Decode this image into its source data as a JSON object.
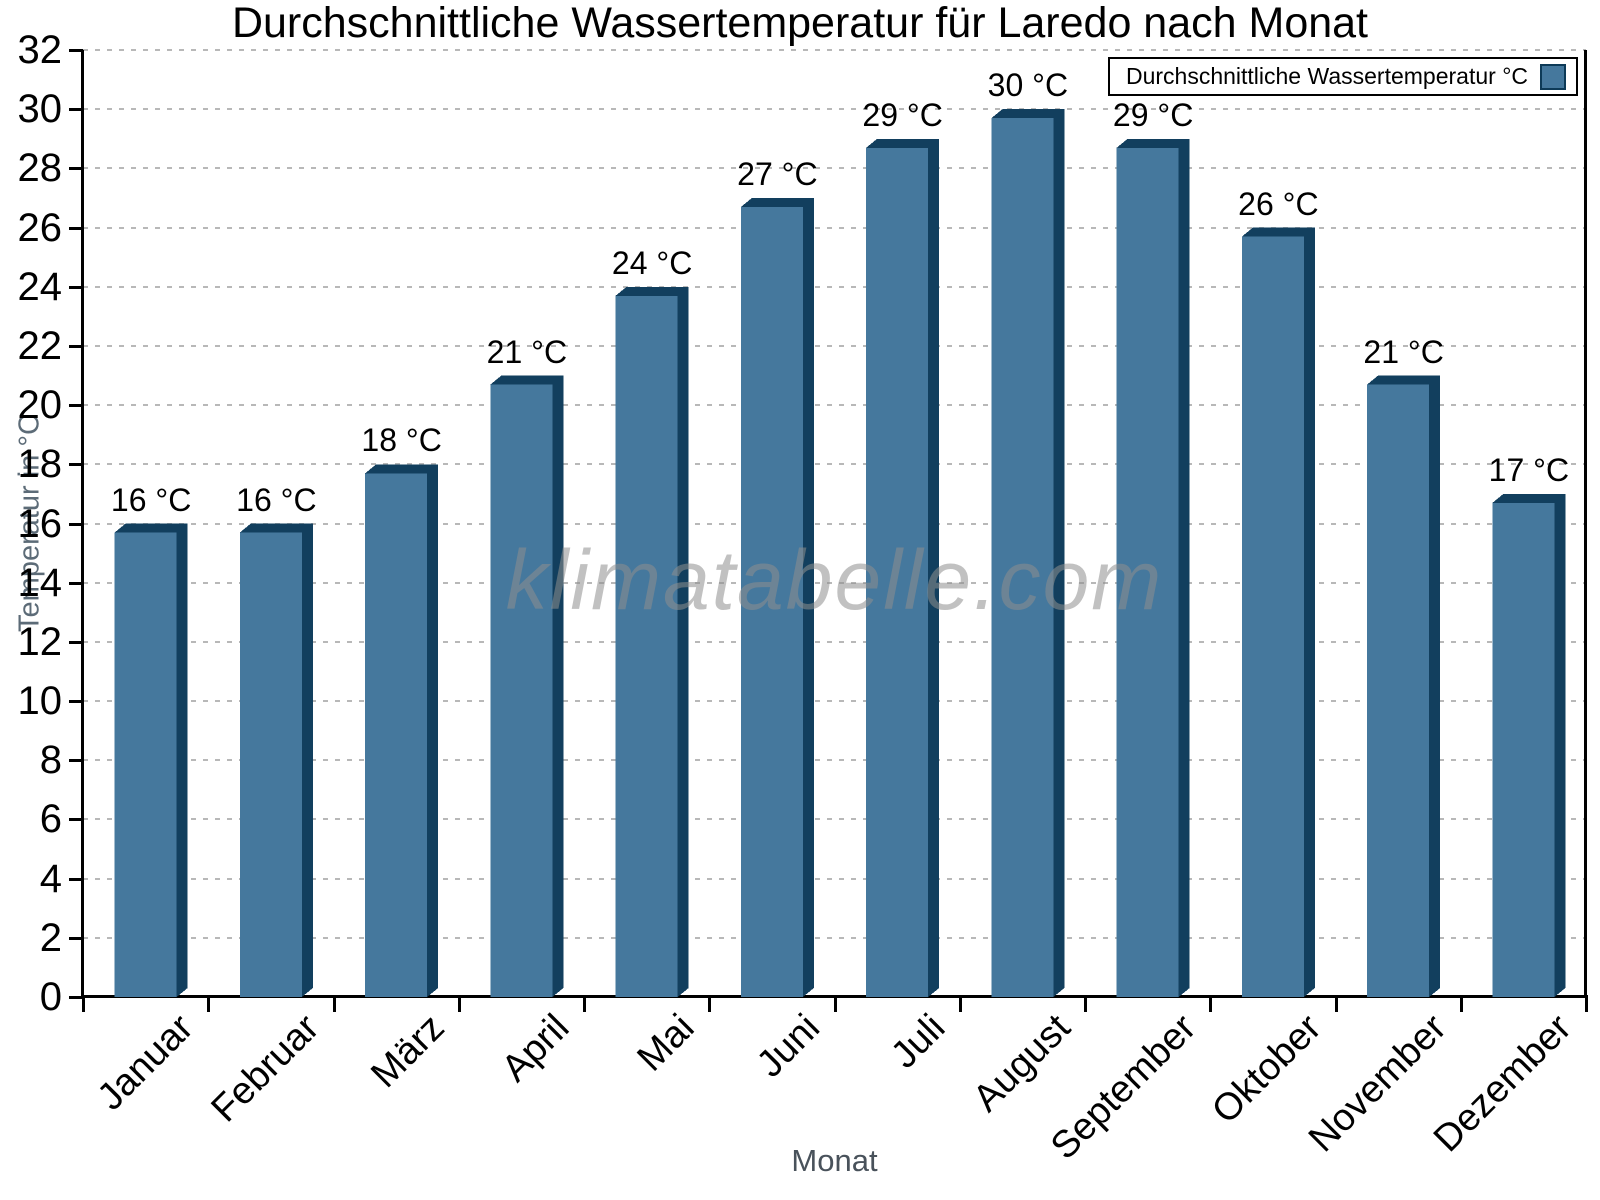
{
  "title": "Durchschnittliche Wassertemperatur für Laredo nach Monat",
  "axes": {
    "x_title": "Monat",
    "y_title": "Temperatur in °C"
  },
  "legend": {
    "label": "Durchschnittliche Wassertemperatur °C"
  },
  "watermark": "klimatabelle.com",
  "chart_data": {
    "type": "bar",
    "title": "Durchschnittliche Wassertemperatur für Laredo nach Monat",
    "xlabel": "Monat",
    "ylabel": "Temperatur in °C",
    "categories": [
      "Januar",
      "Februar",
      "März",
      "April",
      "Mai",
      "Juni",
      "Juli",
      "August",
      "September",
      "Oktober",
      "November",
      "Dezember"
    ],
    "values": [
      16,
      16,
      18,
      21,
      24,
      27,
      29,
      30,
      29,
      26,
      21,
      17
    ],
    "bar_labels": [
      "16 °C",
      "16 °C",
      "18 °C",
      "21 °C",
      "24 °C",
      "27 °C",
      "29 °C",
      "30 °C",
      "29 °C",
      "26 °C",
      "21 °C",
      "17 °C"
    ],
    "unit": "°C",
    "ylim": [
      0,
      32
    ],
    "ytick_step": 2,
    "grid": "horizontal-dashed",
    "legend_label": "Durchschnittliche Wassertemperatur °C",
    "legend_position": "top-right",
    "bar_style": "3d-extruded"
  },
  "colors": {
    "bar_face": "#45789D",
    "bar_shade": "#123F5E",
    "grid": "#b8b8b8",
    "axis": "#000000",
    "axis_title": "#5c6b77",
    "watermark": "#8f8f8f"
  }
}
